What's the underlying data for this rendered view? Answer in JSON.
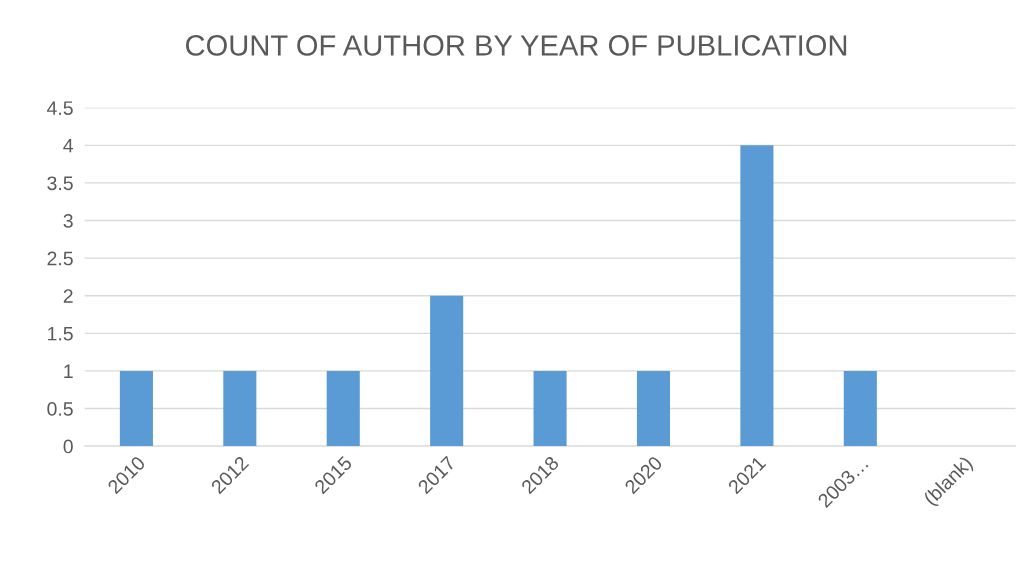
{
  "chart_data": {
    "type": "bar",
    "title": "COUNT OF AUTHOR BY YEAR OF PUBLICATION",
    "categories": [
      "2010",
      "2012",
      "2015",
      "2017",
      "2018",
      "2020",
      "2021",
      "2003…",
      "(blank)"
    ],
    "values": [
      1,
      1,
      1,
      2,
      1,
      1,
      4,
      1,
      null
    ],
    "color": "#5b9bd5",
    "ylim": [
      0,
      4.5
    ],
    "yticks": [
      0,
      0.5,
      1,
      1.5,
      2,
      2.5,
      3,
      3.5,
      4,
      4.5
    ],
    "grid": "y",
    "legend": false
  }
}
